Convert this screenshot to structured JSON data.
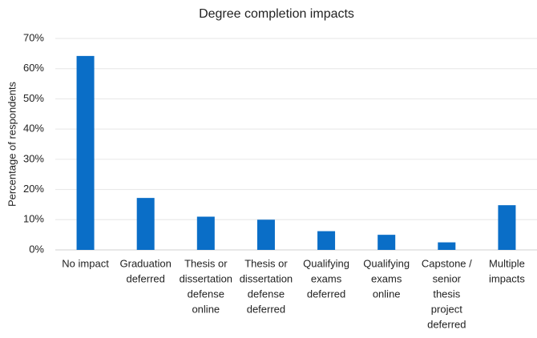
{
  "chart_data": {
    "type": "bar",
    "title": "Degree completion impacts",
    "y_label": "Percentage of respondents",
    "categories": [
      [
        "No impact"
      ],
      [
        "Graduation",
        "deferred"
      ],
      [
        "Thesis or",
        "dissertation",
        "defense",
        "online"
      ],
      [
        "Thesis or",
        "dissertation",
        "defense",
        "deferred"
      ],
      [
        "Qualifying",
        "exams",
        "deferred"
      ],
      [
        "Qualifying",
        "exams",
        "online"
      ],
      [
        "Capstone /",
        "senior",
        "thesis",
        "project",
        "deferred"
      ],
      [
        "Multiple",
        "impacts"
      ]
    ],
    "values": [
      64.2,
      17.2,
      11,
      10,
      6.2,
      5,
      2.5,
      14.8
    ],
    "color": "#0a6ec7",
    "ylim": [
      0,
      70
    ],
    "yticks": [
      {
        "value": 0,
        "label": "0%"
      },
      {
        "value": 10,
        "label": "10%"
      },
      {
        "value": 20,
        "label": "20%"
      },
      {
        "value": 30,
        "label": "30%"
      },
      {
        "value": 40,
        "label": "40%"
      },
      {
        "value": 50,
        "label": "50%"
      },
      {
        "value": 60,
        "label": "60%"
      },
      {
        "value": 70,
        "label": "70%"
      }
    ],
    "grid": true
  }
}
